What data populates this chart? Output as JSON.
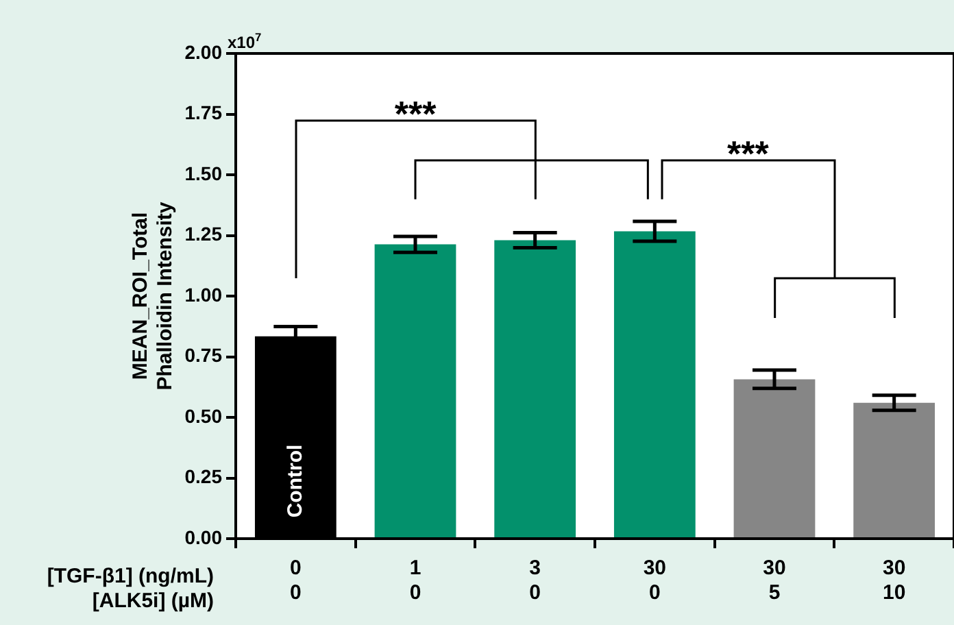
{
  "chart_data": {
    "type": "bar",
    "ylabel": "MEAN_ROI_Total\nPhalloidin Intensity",
    "xlabel": "[TGF-β1] (ng/mL)\n[ALK5i] (µM)",
    "categories": [
      "0\n0",
      "1\n0",
      "3\n0",
      "30\n0",
      "30\n5",
      "30\n10"
    ],
    "values": [
      0.834,
      1.213,
      1.23,
      1.267,
      0.657,
      0.56
    ],
    "errors": [
      0.04,
      0.033,
      0.031,
      0.041,
      0.038,
      0.031
    ],
    "colors": [
      "#000000",
      "#03916c",
      "#03916c",
      "#03916c",
      "#868686",
      "#868686"
    ],
    "ylim": [
      0,
      2
    ],
    "yticks": [
      {
        "value": 0,
        "label": "0.00"
      },
      {
        "value": 0.25,
        "label": "0.25"
      },
      {
        "value": 0.5,
        "label": "0.50"
      },
      {
        "value": 0.75,
        "label": "0.75"
      },
      {
        "value": 1,
        "label": "1.00"
      },
      {
        "value": 1.25,
        "label": "1.25"
      },
      {
        "value": 1.5,
        "label": "1.50"
      },
      {
        "value": 1.75,
        "label": "1.75"
      },
      {
        "value": 2,
        "label": "2.00"
      }
    ],
    "grid": false,
    "legend": false,
    "annotations": [
      "x10$^{7}$",
      "***",
      "***",
      "Control"
    ]
  }
}
